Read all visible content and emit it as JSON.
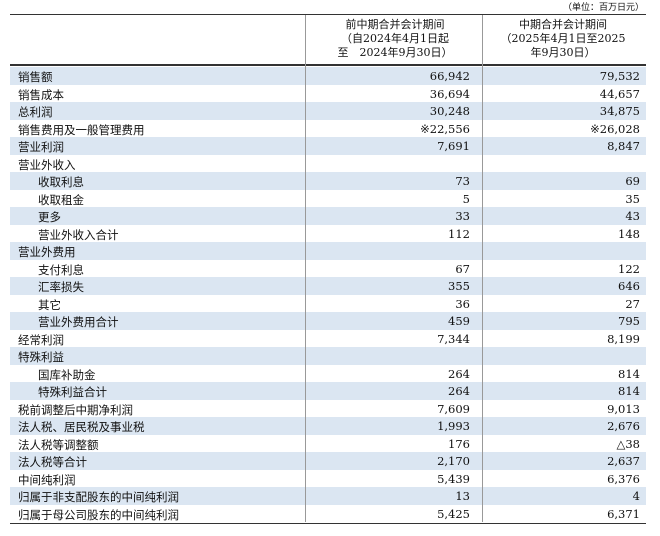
{
  "unit_note": "（单位：百万日元）",
  "table": {
    "headers": [
      [
        "前中期合并会计期间",
        "（自2024年4月1日起",
        "至　2024年9月30日）"
      ],
      [
        "中期合并会计期间",
        "（2025年4月1日至2025",
        "年9月30日）"
      ]
    ],
    "rows": [
      [
        "销售额",
        "66,942",
        "79,532"
      ],
      [
        "销售成本",
        "36,694",
        "44,657"
      ],
      [
        "总利润",
        "30,248",
        "34,875"
      ],
      [
        "销售费用及一般管理费用",
        "※22,556",
        "※26,028"
      ],
      [
        "营业利润",
        "7,691",
        "8,847"
      ],
      [
        "营业外收入"
      ],
      [
        "收取利息",
        "73",
        "69"
      ],
      [
        "收取租金",
        "5",
        "35"
      ],
      [
        "更多",
        "33",
        "43"
      ],
      [
        "营业外收入合计",
        "112",
        "148"
      ],
      [
        "营业外费用"
      ],
      [
        "支付利息",
        "67",
        "122"
      ],
      [
        "汇率损失",
        "355",
        "646"
      ],
      [
        "其它",
        "36",
        "27"
      ],
      [
        "营业外费用合计",
        "459",
        "795"
      ],
      [
        "经常利润",
        "7,344",
        "8,199"
      ],
      [
        "特殊利益"
      ],
      [
        "国库补助金",
        "264",
        "814"
      ],
      [
        "特殊利益合计",
        "264",
        "814"
      ],
      [
        "税前调整后中期净利润",
        "7,609",
        "9,013"
      ],
      [
        "法人税、居民税及事业税",
        "1,993",
        "2,676"
      ],
      [
        "法人税等调整额",
        "176",
        "△38"
      ],
      [
        "法人税等合计",
        "2,170",
        "2,637"
      ],
      [
        "中间纯利润",
        "5,439",
        "6,376"
      ],
      [
        "归属于非支配股东的中间纯利润",
        "13",
        "4"
      ],
      [
        "归属于母公司股东的中间纯利润",
        "5,425",
        "6,371"
      ]
    ]
  }
}
